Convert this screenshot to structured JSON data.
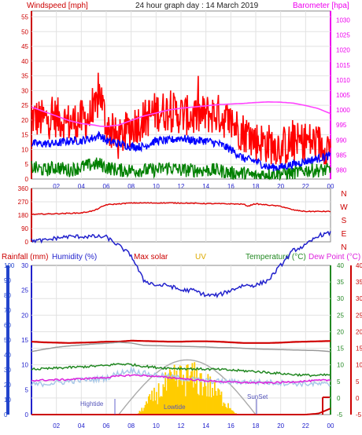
{
  "chart_data": [
    {
      "type": "line",
      "title": "24 hour graph day : 14 March 2019",
      "left_axis_label": "Windspeed [mph]",
      "right_axis_label": "Barometer [hpa]",
      "x_ticks": [
        "02",
        "04",
        "06",
        "08",
        "10",
        "12",
        "14",
        "16",
        "18",
        "20",
        "22",
        "00"
      ],
      "left_ticks": [
        "0",
        "5",
        "10",
        "15",
        "20",
        "25",
        "30",
        "35",
        "40",
        "45",
        "50",
        "55"
      ],
      "right_ticks": [
        "980",
        "985",
        "990",
        "995",
        "1000",
        "1005",
        "1010",
        "1015",
        "1020",
        "1025",
        "1030"
      ],
      "ylim_left": [
        0,
        57
      ],
      "ylim_right": [
        977,
        1033
      ],
      "x_hours": [
        0,
        1,
        2,
        3,
        4,
        5,
        5.5,
        6,
        7,
        8,
        9,
        10,
        11,
        12,
        13,
        14,
        15,
        16,
        17,
        18,
        19,
        20,
        21,
        22,
        23,
        24
      ],
      "series": [
        {
          "key": "gust",
          "color": "#ff0000",
          "axis": "left",
          "values": [
            21,
            20,
            21,
            19,
            20,
            21,
            30,
            18,
            13,
            18,
            20,
            23,
            23,
            22,
            21,
            22,
            22,
            19,
            16,
            13,
            12,
            11,
            12,
            13,
            12,
            11
          ]
        },
        {
          "key": "avg",
          "color": "#0000ff",
          "axis": "left",
          "values": [
            12,
            12,
            12,
            13,
            13,
            14,
            15,
            13,
            12,
            11,
            11,
            13,
            13,
            14,
            13,
            13,
            12,
            10,
            7,
            6,
            4,
            4,
            5,
            6,
            7,
            8
          ]
        },
        {
          "key": "low",
          "color": "#008000",
          "axis": "left",
          "values": [
            4,
            3,
            4,
            3,
            4,
            5,
            5,
            4,
            3,
            3,
            3,
            3,
            4,
            3,
            3,
            3,
            3,
            2,
            2,
            1,
            2,
            2,
            2,
            3,
            3,
            3
          ]
        },
        {
          "key": "baro",
          "color": "#ff44ff",
          "axis": "right",
          "values": [
            1001,
            999.5,
            998,
            996.5,
            995.5,
            995,
            994.6,
            994.5,
            995,
            996.5,
            998,
            999,
            1000,
            1000.6,
            1001,
            1001.4,
            1001.8,
            1002,
            1002.2,
            1002.5,
            1002.7,
            1002.6,
            1002.3,
            1001.5,
            1000.5,
            998.8
          ]
        }
      ]
    },
    {
      "type": "line",
      "right_axis_labels": [
        "N",
        "W",
        "S",
        "E",
        "N"
      ],
      "left_ticks": [
        "0",
        "90",
        "180",
        "270",
        "360"
      ],
      "ylim": [
        0,
        360
      ],
      "x_hours": [
        0,
        2,
        4,
        5,
        6,
        8,
        10,
        12,
        14,
        16,
        17,
        17.4,
        17.8,
        18,
        20,
        21,
        22,
        24
      ],
      "series": [
        {
          "key": "wind_dir",
          "color": "#dd0000",
          "values": [
            185,
            190,
            195,
            210,
            250,
            262,
            262,
            262,
            258,
            256,
            254,
            240,
            254,
            256,
            240,
            215,
            205,
            205
          ]
        }
      ]
    },
    {
      "type": "line",
      "labels": {
        "rain": "Rainfall (mm)",
        "hum": "Humidity (%)",
        "solar": "Max solar",
        "uv": "UV",
        "temp": "Temperature (°C)",
        "dew": "Dew Point (°C)",
        "hightide": "Hightide",
        "lowtide": "Lowtide",
        "sunset": "SunSet"
      },
      "rain_ticks": [
        "0",
        "10",
        "20",
        "30",
        "40",
        "50",
        "60",
        "70",
        "80",
        "90",
        "100"
      ],
      "hum_ticks": [
        "0",
        "5",
        "10",
        "15",
        "20",
        "25",
        "30"
      ],
      "temp_ticks": [
        "-5",
        "0",
        "5",
        "10",
        "15",
        "20",
        "25",
        "30",
        "35",
        "40"
      ],
      "temp_lim": [
        -5,
        40
      ],
      "x_ticks": [
        "02",
        "04",
        "06",
        "08",
        "10",
        "12",
        "14",
        "16",
        "18",
        "20",
        "22",
        "00"
      ],
      "x_hours": [
        0,
        1,
        2,
        3,
        4,
        5,
        6,
        7,
        8,
        9,
        10,
        11,
        12,
        13,
        14,
        15,
        16,
        17,
        18,
        19,
        20,
        21,
        22,
        23,
        24
      ],
      "series": [
        {
          "key": "humidity",
          "color": "#2222cc",
          "values": [
            35,
            35,
            35.5,
            35.8,
            35.8,
            35.8,
            35.7,
            34,
            32,
            27,
            26,
            26,
            25,
            25,
            24,
            24,
            25,
            26,
            26,
            27,
            30,
            33,
            34,
            36,
            36.5
          ]
        },
        {
          "key": "max_temp",
          "color": "#d00000",
          "values": [
            17,
            16.8,
            16.7,
            16.6,
            16.7,
            16.8,
            17,
            17,
            17.3,
            17.2,
            17.1,
            17,
            17,
            17.1,
            17.1,
            17,
            16.8,
            16.6,
            16.6,
            16.6,
            16.7,
            16.9,
            17,
            17.1,
            17.2
          ]
        },
        {
          "key": "grey",
          "color": "#999999",
          "values": [
            14,
            14.7,
            15.3,
            15.7,
            16,
            16.3,
            16.5,
            16.8,
            16.6,
            15.9,
            15.8,
            15.7,
            15.6,
            15.5,
            15.4,
            15.2,
            15.2,
            15.0,
            14.8,
            14.7,
            14.6,
            14.5,
            14.4,
            14.3,
            14.0
          ]
        },
        {
          "key": "temperature",
          "color": "#228822",
          "values": [
            8.7,
            8.8,
            9.0,
            9.2,
            9.4,
            9.6,
            9.8,
            10.3,
            10.1,
            9.6,
            9.2,
            9.0,
            8.9,
            8.8,
            8.7,
            8.6,
            8.4,
            8.2,
            8.0,
            7.7,
            7.4,
            7.1,
            6.9,
            6.8,
            7.0
          ]
        },
        {
          "key": "dew_light",
          "color": "#a8c8e8",
          "values": [
            4.0,
            4.3,
            4.6,
            5.0,
            5.4,
            5.6,
            6.0,
            7.5,
            8.4,
            7.5,
            6.9,
            6.5,
            6.0,
            5.6,
            5.2,
            5.0,
            4.9,
            4.9,
            4.8,
            4.7,
            4.6,
            4.4,
            4.3,
            4.2,
            4.0
          ]
        },
        {
          "key": "dewpoint",
          "color": "#dd22dd",
          "values": [
            5.3,
            5.4,
            5.5,
            5.6,
            5.8,
            6.0,
            6.2,
            6.6,
            6.9,
            6.8,
            6.5,
            6.2,
            5.9,
            5.5,
            5.2,
            5.0,
            4.8,
            4.7,
            4.6,
            4.6,
            4.7,
            4.9,
            5.1,
            5.3,
            5.4
          ]
        },
        {
          "key": "rain_total",
          "color": "#cc0000",
          "values": [
            0,
            0,
            0,
            0,
            0,
            0,
            0,
            0,
            0,
            0,
            0,
            0,
            0,
            0,
            0,
            0,
            0,
            0,
            0,
            0,
            0,
            0,
            0,
            0.4,
            2.6
          ]
        }
      ],
      "solar_curve": {
        "color": "#aaaaaa",
        "start_hour": 7,
        "end_hour": 18,
        "peak_value": 11.5
      },
      "uv_curve": {
        "color": "#ffcc00",
        "start_hour": 8.5,
        "end_hour": 16.5,
        "peak_value": 15
      }
    }
  ]
}
